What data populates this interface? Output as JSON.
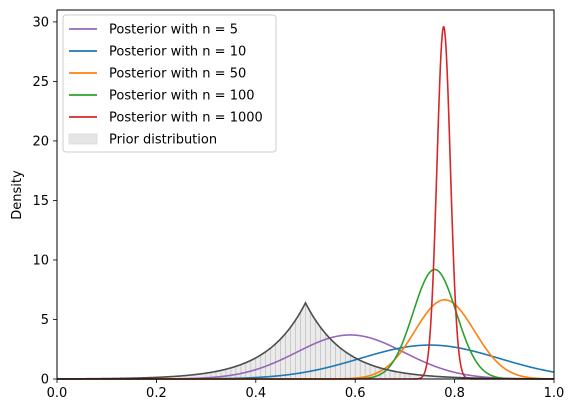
{
  "chart_data": {
    "type": "line",
    "title": "",
    "xlabel": "",
    "ylabel": "Density",
    "xlim": [
      0.0,
      1.0
    ],
    "ylim": [
      0,
      31
    ],
    "x_ticks": [
      "0.0",
      "0.2",
      "0.4",
      "0.6",
      "0.8",
      "1.0"
    ],
    "y_ticks": [
      "0",
      "5",
      "10",
      "15",
      "20",
      "25",
      "30"
    ],
    "grid": false,
    "legend_position": "top-left",
    "series": [
      {
        "name": "Posterior with n = 5",
        "color": "#9467bd",
        "mean": 0.59,
        "sd": 0.108,
        "peak_density": 3.7
      },
      {
        "name": "Posterior with n = 10",
        "color": "#1f77b4",
        "mean": 0.75,
        "sd": 0.14,
        "peak_density": 2.85
      },
      {
        "name": "Posterior with n = 50",
        "color": "#ff7f0e",
        "mean": 0.78,
        "sd": 0.06,
        "peak_density": 6.65
      },
      {
        "name": "Posterior with n = 100",
        "color": "#2ca02c",
        "mean": 0.76,
        "sd": 0.0435,
        "peak_density": 9.2
      },
      {
        "name": "Posterior with n = 1000",
        "color": "#d62728",
        "mean": 0.778,
        "sd": 0.0135,
        "peak_density": 29.6
      }
    ],
    "prior": {
      "name": "Prior distribution",
      "shape": "laplace",
      "location": 0.5,
      "scale": 0.078,
      "peak_density": 6.4,
      "line_color": "#4d4d4d",
      "fill_color": "#d3d3d3"
    }
  }
}
